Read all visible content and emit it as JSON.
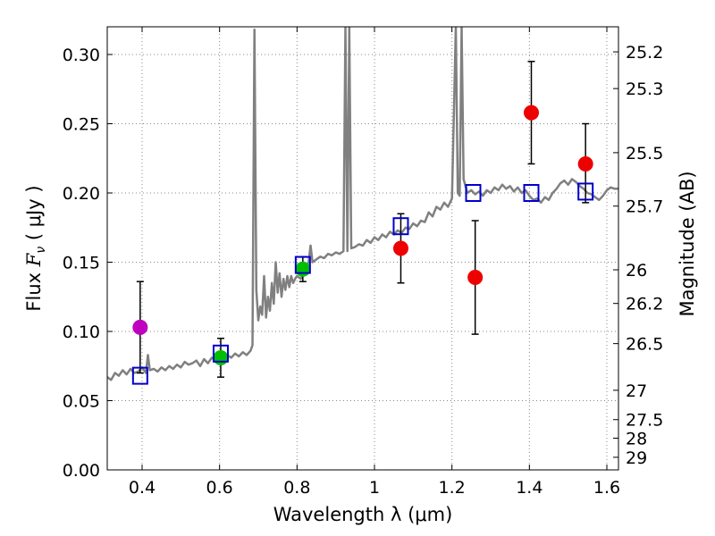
{
  "chart_data": {
    "type": "scatter",
    "title": "",
    "xlabel": "Wavelength  λ (μm)",
    "ylabel": "Flux  F_ν  ( μJy )",
    "ylabel_parts": {
      "prefix": "Flux ",
      "symbol": "F",
      "subscript": "ν",
      "suffix": " ( μJy )"
    },
    "y2label": "Magnitude (AB)",
    "xlim": [
      0.31,
      1.63
    ],
    "ylim": [
      0.0,
      0.32
    ],
    "grid": true,
    "xticks": [
      0.4,
      0.6,
      0.8,
      1.0,
      1.2,
      1.4,
      1.6
    ],
    "xtick_labels": [
      "0.4",
      "0.6",
      "0.8",
      "1",
      "1.2",
      "1.4",
      "1.6"
    ],
    "yticks": [
      0.0,
      0.05,
      0.1,
      0.15,
      0.2,
      0.25,
      0.3
    ],
    "ytick_labels": [
      "0.00",
      "0.05",
      "0.10",
      "0.15",
      "0.20",
      "0.25",
      "0.30"
    ],
    "y2_ticks": [
      {
        "label": "25.2",
        "flux": 0.3019
      },
      {
        "label": "25.3",
        "flux": 0.2754
      },
      {
        "label": "25.5",
        "flux": 0.2291
      },
      {
        "label": "25.7",
        "flux": 0.1905
      },
      {
        "label": "26",
        "flux": 0.1445
      },
      {
        "label": "26.2",
        "flux": 0.1202
      },
      {
        "label": "26.5",
        "flux": 0.0912
      },
      {
        "label": "27",
        "flux": 0.0575
      },
      {
        "label": "27.5",
        "flux": 0.0363
      },
      {
        "label": "28",
        "flux": 0.0229
      },
      {
        "label": "29",
        "flux": 0.0091
      }
    ],
    "colors": {
      "template": "#808080",
      "model_box": "#0000cc",
      "purple": "#bf00bf",
      "green": "#00bf00",
      "red": "#ee0000",
      "errorbar": "#000000",
      "grid": "#888888"
    },
    "model_points": [
      {
        "x": 0.395,
        "y": 0.068
      },
      {
        "x": 0.603,
        "y": 0.084
      },
      {
        "x": 0.815,
        "y": 0.148
      },
      {
        "x": 1.068,
        "y": 0.176
      },
      {
        "x": 1.255,
        "y": 0.2
      },
      {
        "x": 1.405,
        "y": 0.2
      },
      {
        "x": 1.545,
        "y": 0.201
      }
    ],
    "observed_points": [
      {
        "x": 0.395,
        "y": 0.103,
        "err_low": 0.07,
        "err_high": 0.136,
        "color": "purple"
      },
      {
        "x": 0.603,
        "y": 0.081,
        "err_low": 0.067,
        "err_high": 0.095,
        "color": "green"
      },
      {
        "x": 0.815,
        "y": 0.145,
        "err_low": 0.136,
        "err_high": 0.154,
        "color": "green"
      },
      {
        "x": 1.068,
        "y": 0.16,
        "err_low": 0.135,
        "err_high": 0.185,
        "color": "red"
      },
      {
        "x": 1.26,
        "y": 0.139,
        "err_low": 0.098,
        "err_high": 0.18,
        "color": "red"
      },
      {
        "x": 1.405,
        "y": 0.258,
        "err_low": 0.221,
        "err_high": 0.295,
        "color": "red"
      },
      {
        "x": 1.545,
        "y": 0.221,
        "err_low": 0.193,
        "err_high": 0.25,
        "color": "red"
      }
    ],
    "template_spectrum": [
      [
        0.31,
        0.067
      ],
      [
        0.32,
        0.065
      ],
      [
        0.33,
        0.07
      ],
      [
        0.34,
        0.068
      ],
      [
        0.35,
        0.072
      ],
      [
        0.36,
        0.069
      ],
      [
        0.37,
        0.073
      ],
      [
        0.38,
        0.07
      ],
      [
        0.39,
        0.071
      ],
      [
        0.4,
        0.074
      ],
      [
        0.41,
        0.07
      ],
      [
        0.415,
        0.083
      ],
      [
        0.42,
        0.072
      ],
      [
        0.43,
        0.073
      ],
      [
        0.44,
        0.071
      ],
      [
        0.45,
        0.074
      ],
      [
        0.46,
        0.072
      ],
      [
        0.47,
        0.075
      ],
      [
        0.48,
        0.073
      ],
      [
        0.49,
        0.076
      ],
      [
        0.5,
        0.074
      ],
      [
        0.51,
        0.078
      ],
      [
        0.52,
        0.076
      ],
      [
        0.53,
        0.077
      ],
      [
        0.54,
        0.079
      ],
      [
        0.55,
        0.075
      ],
      [
        0.56,
        0.08
      ],
      [
        0.57,
        0.077
      ],
      [
        0.58,
        0.081
      ],
      [
        0.59,
        0.079
      ],
      [
        0.6,
        0.082
      ],
      [
        0.61,
        0.08
      ],
      [
        0.62,
        0.083
      ],
      [
        0.63,
        0.081
      ],
      [
        0.64,
        0.084
      ],
      [
        0.65,
        0.082
      ],
      [
        0.66,
        0.085
      ],
      [
        0.67,
        0.083
      ],
      [
        0.68,
        0.086
      ],
      [
        0.685,
        0.09
      ],
      [
        0.69,
        0.318
      ],
      [
        0.695,
        0.13
      ],
      [
        0.7,
        0.108
      ],
      [
        0.705,
        0.118
      ],
      [
        0.71,
        0.112
      ],
      [
        0.715,
        0.14
      ],
      [
        0.72,
        0.11
      ],
      [
        0.725,
        0.125
      ],
      [
        0.73,
        0.115
      ],
      [
        0.735,
        0.135
      ],
      [
        0.74,
        0.12
      ],
      [
        0.745,
        0.15
      ],
      [
        0.75,
        0.128
      ],
      [
        0.755,
        0.142
      ],
      [
        0.76,
        0.125
      ],
      [
        0.765,
        0.138
      ],
      [
        0.77,
        0.13
      ],
      [
        0.775,
        0.14
      ],
      [
        0.78,
        0.132
      ],
      [
        0.785,
        0.14
      ],
      [
        0.79,
        0.135
      ],
      [
        0.795,
        0.138
      ],
      [
        0.8,
        0.14
      ],
      [
        0.81,
        0.138
      ],
      [
        0.82,
        0.145
      ],
      [
        0.83,
        0.15
      ],
      [
        0.835,
        0.162
      ],
      [
        0.84,
        0.15
      ],
      [
        0.85,
        0.152
      ],
      [
        0.86,
        0.154
      ],
      [
        0.87,
        0.153
      ],
      [
        0.88,
        0.156
      ],
      [
        0.89,
        0.155
      ],
      [
        0.9,
        0.157
      ],
      [
        0.91,
        0.156
      ],
      [
        0.92,
        0.158
      ],
      [
        0.925,
        0.32
      ],
      [
        0.93,
        0.158
      ],
      [
        0.935,
        0.32
      ],
      [
        0.94,
        0.16
      ],
      [
        0.95,
        0.161
      ],
      [
        0.96,
        0.163
      ],
      [
        0.97,
        0.162
      ],
      [
        0.98,
        0.166
      ],
      [
        0.99,
        0.164
      ],
      [
        1.0,
        0.168
      ],
      [
        1.01,
        0.166
      ],
      [
        1.02,
        0.17
      ],
      [
        1.03,
        0.168
      ],
      [
        1.04,
        0.172
      ],
      [
        1.05,
        0.17
      ],
      [
        1.06,
        0.173
      ],
      [
        1.07,
        0.171
      ],
      [
        1.08,
        0.175
      ],
      [
        1.09,
        0.174
      ],
      [
        1.1,
        0.178
      ],
      [
        1.11,
        0.176
      ],
      [
        1.12,
        0.18
      ],
      [
        1.13,
        0.179
      ],
      [
        1.14,
        0.186
      ],
      [
        1.15,
        0.183
      ],
      [
        1.16,
        0.19
      ],
      [
        1.17,
        0.188
      ],
      [
        1.18,
        0.193
      ],
      [
        1.19,
        0.19
      ],
      [
        1.2,
        0.196
      ],
      [
        1.21,
        0.32
      ],
      [
        1.215,
        0.2
      ],
      [
        1.22,
        0.198
      ],
      [
        1.225,
        0.32
      ],
      [
        1.23,
        0.21
      ],
      [
        1.235,
        0.205
      ],
      [
        1.24,
        0.2
      ],
      [
        1.25,
        0.202
      ],
      [
        1.26,
        0.199
      ],
      [
        1.27,
        0.201
      ],
      [
        1.28,
        0.198
      ],
      [
        1.29,
        0.202
      ],
      [
        1.3,
        0.2
      ],
      [
        1.31,
        0.204
      ],
      [
        1.32,
        0.202
      ],
      [
        1.33,
        0.206
      ],
      [
        1.34,
        0.203
      ],
      [
        1.35,
        0.205
      ],
      [
        1.36,
        0.201
      ],
      [
        1.37,
        0.204
      ],
      [
        1.38,
        0.2
      ],
      [
        1.39,
        0.202
      ],
      [
        1.4,
        0.198
      ],
      [
        1.41,
        0.195
      ],
      [
        1.42,
        0.196
      ],
      [
        1.43,
        0.193
      ],
      [
        1.44,
        0.197
      ],
      [
        1.45,
        0.195
      ],
      [
        1.46,
        0.2
      ],
      [
        1.47,
        0.203
      ],
      [
        1.48,
        0.207
      ],
      [
        1.49,
        0.209
      ],
      [
        1.5,
        0.206
      ],
      [
        1.51,
        0.21
      ],
      [
        1.52,
        0.208
      ],
      [
        1.53,
        0.205
      ],
      [
        1.54,
        0.203
      ],
      [
        1.55,
        0.2
      ],
      [
        1.56,
        0.199
      ],
      [
        1.57,
        0.197
      ],
      [
        1.58,
        0.195
      ],
      [
        1.59,
        0.198
      ],
      [
        1.6,
        0.202
      ],
      [
        1.61,
        0.204
      ],
      [
        1.62,
        0.203
      ],
      [
        1.63,
        0.203
      ]
    ]
  }
}
